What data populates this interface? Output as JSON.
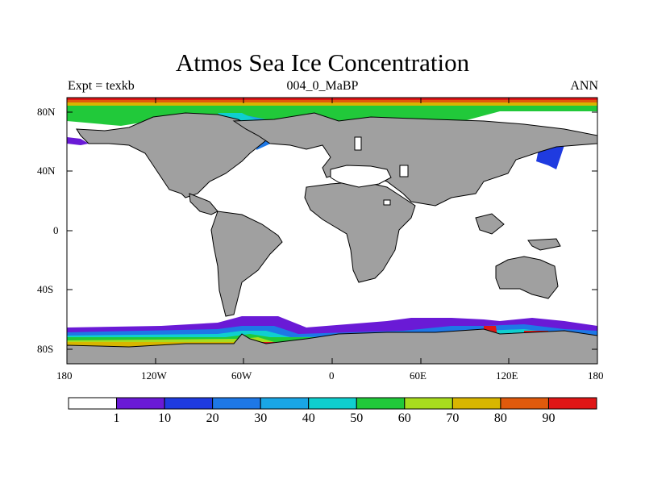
{
  "header": {
    "title": "Atmos Sea Ice Concentration",
    "left_label": "Expt = texkb",
    "center_label": "004_0_MaBP",
    "right_label": "ANN"
  },
  "axes": {
    "lat_ticks": [
      "80N",
      "40N",
      "0",
      "40S",
      "80S"
    ],
    "lon_ticks": [
      "180",
      "120W",
      "60W",
      "0",
      "60E",
      "120E",
      "180"
    ]
  },
  "colorbar": {
    "colors": [
      "#ffffff",
      "#6a1ad6",
      "#1f3be0",
      "#1e78e6",
      "#19a6e6",
      "#0fcfcf",
      "#21c93a",
      "#a8dc1e",
      "#d8b600",
      "#e05a0c",
      "#e01616"
    ],
    "labels": [
      "1",
      "10",
      "20",
      "30",
      "40",
      "50",
      "60",
      "70",
      "80",
      "90"
    ]
  },
  "map_colors": {
    "land": "#a0a0a0",
    "outline": "#000000"
  }
}
